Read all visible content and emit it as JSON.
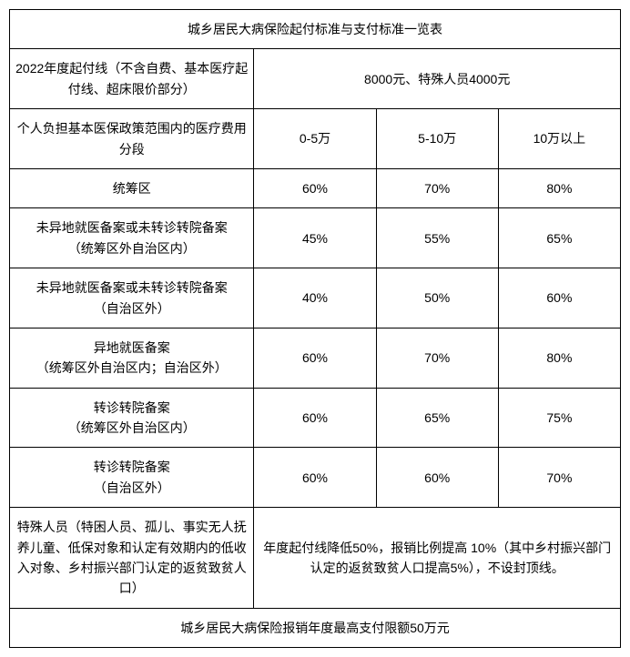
{
  "title": "城乡居民大病保险起付标准与支付标准一览表",
  "deductible_label": "2022年度起付线（不含自费、基本医疗起付线、超床限价部分）",
  "deductible_value": "8000元、特殊人员4000元",
  "bracket_header": "个人负担基本医保政策范围内的医疗费用分段",
  "brackets": [
    "0-5万",
    "5-10万",
    "10万以上"
  ],
  "rows": [
    {
      "label": "统筹区",
      "vals": [
        "60%",
        "70%",
        "80%"
      ]
    },
    {
      "label": "未异地就医备案或未转诊转院备案\n（统筹区外自治区内）",
      "vals": [
        "45%",
        "55%",
        "65%"
      ]
    },
    {
      "label": "未异地就医备案或未转诊转院备案\n（自治区外）",
      "vals": [
        "40%",
        "50%",
        "60%"
      ]
    },
    {
      "label": "异地就医备案\n（统筹区外自治区内；自治区外）",
      "vals": [
        "60%",
        "70%",
        "80%"
      ]
    },
    {
      "label": "转诊转院备案\n（统筹区外自治区内）",
      "vals": [
        "60%",
        "65%",
        "75%"
      ]
    },
    {
      "label": "转诊转院备案\n（自治区外）",
      "vals": [
        "60%",
        "60%",
        "70%"
      ]
    }
  ],
  "special_label": "特殊人员（特困人员、孤儿、事实无人抚养儿童、低保对象和认定有效期内的低收入对象、乡村振兴部门认定的返贫致贫人口）",
  "special_value": "年度起付线降低50%，报销比例提高 10%（其中乡村振兴部门认定的返贫致贫人口提高5%），不设封顶线。",
  "footer": "城乡居民大病保险报销年度最高支付限额50万元",
  "style": {
    "border_color": "#000000",
    "background": "#ffffff",
    "font_size": 14,
    "text_color": "#000000"
  }
}
